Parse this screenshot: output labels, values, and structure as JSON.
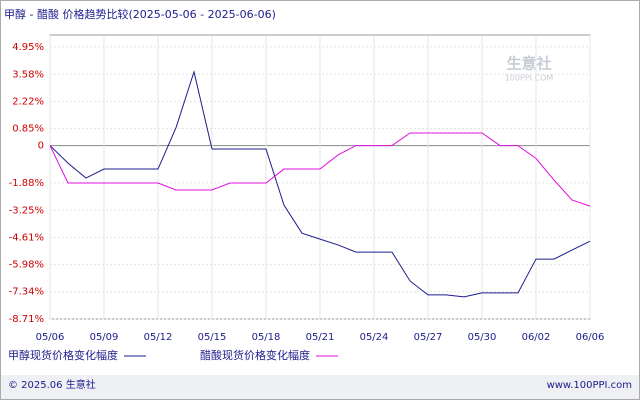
{
  "chart_data": {
    "type": "line",
    "title": "甲醇 - 醋酸 价格趋势比较(2025-05-06 - 2025-06-06)",
    "categories": [
      "05/06",
      null,
      null,
      "05/09",
      null,
      null,
      "05/12",
      null,
      null,
      "05/15",
      null,
      null,
      "05/18",
      null,
      null,
      "05/21",
      null,
      null,
      "05/24",
      null,
      null,
      "05/27",
      null,
      null,
      "05/30",
      null,
      null,
      "06/02",
      null,
      null,
      "06/06"
    ],
    "series": [
      {
        "name": "甲醇现货价格变化幅度",
        "color": "#1c1c8c",
        "values": [
          0,
          -0.88,
          -1.63,
          -1.18,
          -1.18,
          -1.18,
          -1.18,
          0.9,
          3.7,
          -0.17,
          -0.17,
          -0.17,
          -0.17,
          -2.99,
          -4.4,
          -4.7,
          -4.99,
          -5.35,
          -5.35,
          -5.35,
          -6.8,
          -7.5,
          -7.5,
          -7.6,
          -7.4,
          -7.4,
          -7.4,
          -5.7,
          -5.7,
          -5.25,
          -4.8
        ]
      },
      {
        "name": "醋酸现货价格变化幅度",
        "color": "#e010e0",
        "values": [
          0,
          -1.88,
          -1.88,
          -1.88,
          -1.88,
          -1.88,
          -1.88,
          -2.23,
          -2.23,
          -2.23,
          -1.88,
          -1.88,
          -1.88,
          -1.18,
          -1.18,
          -1.18,
          -0.47,
          0,
          0,
          0,
          0.63,
          0.63,
          0.63,
          0.63,
          0.63,
          0,
          0,
          -0.65,
          -1.73,
          -2.73,
          -3.04
        ]
      }
    ],
    "ylim": [
      -8.71,
      4.95
    ],
    "yticks": [
      {
        "value": 4.95,
        "label": "4.95%"
      },
      {
        "value": 3.58,
        "label": "3.58%"
      },
      {
        "value": 2.22,
        "label": "2.22%"
      },
      {
        "value": 0.85,
        "label": "0.85%"
      },
      0,
      {
        "value": -1.88,
        "label": "-1.88%"
      },
      {
        "value": -3.25,
        "label": "-3.25%"
      },
      {
        "value": -4.61,
        "label": "-4.61%"
      },
      {
        "value": -5.98,
        "label": "-5.98%"
      },
      {
        "value": -7.34,
        "label": "-7.34%"
      },
      {
        "value": -8.71,
        "label": "-8.71%"
      }
    ],
    "grid": true,
    "watermark": "生意社",
    "watermark_sub": "100PPI.COM",
    "footer": "© 2025.06 生意社",
    "source": "www.100PPI.com"
  }
}
